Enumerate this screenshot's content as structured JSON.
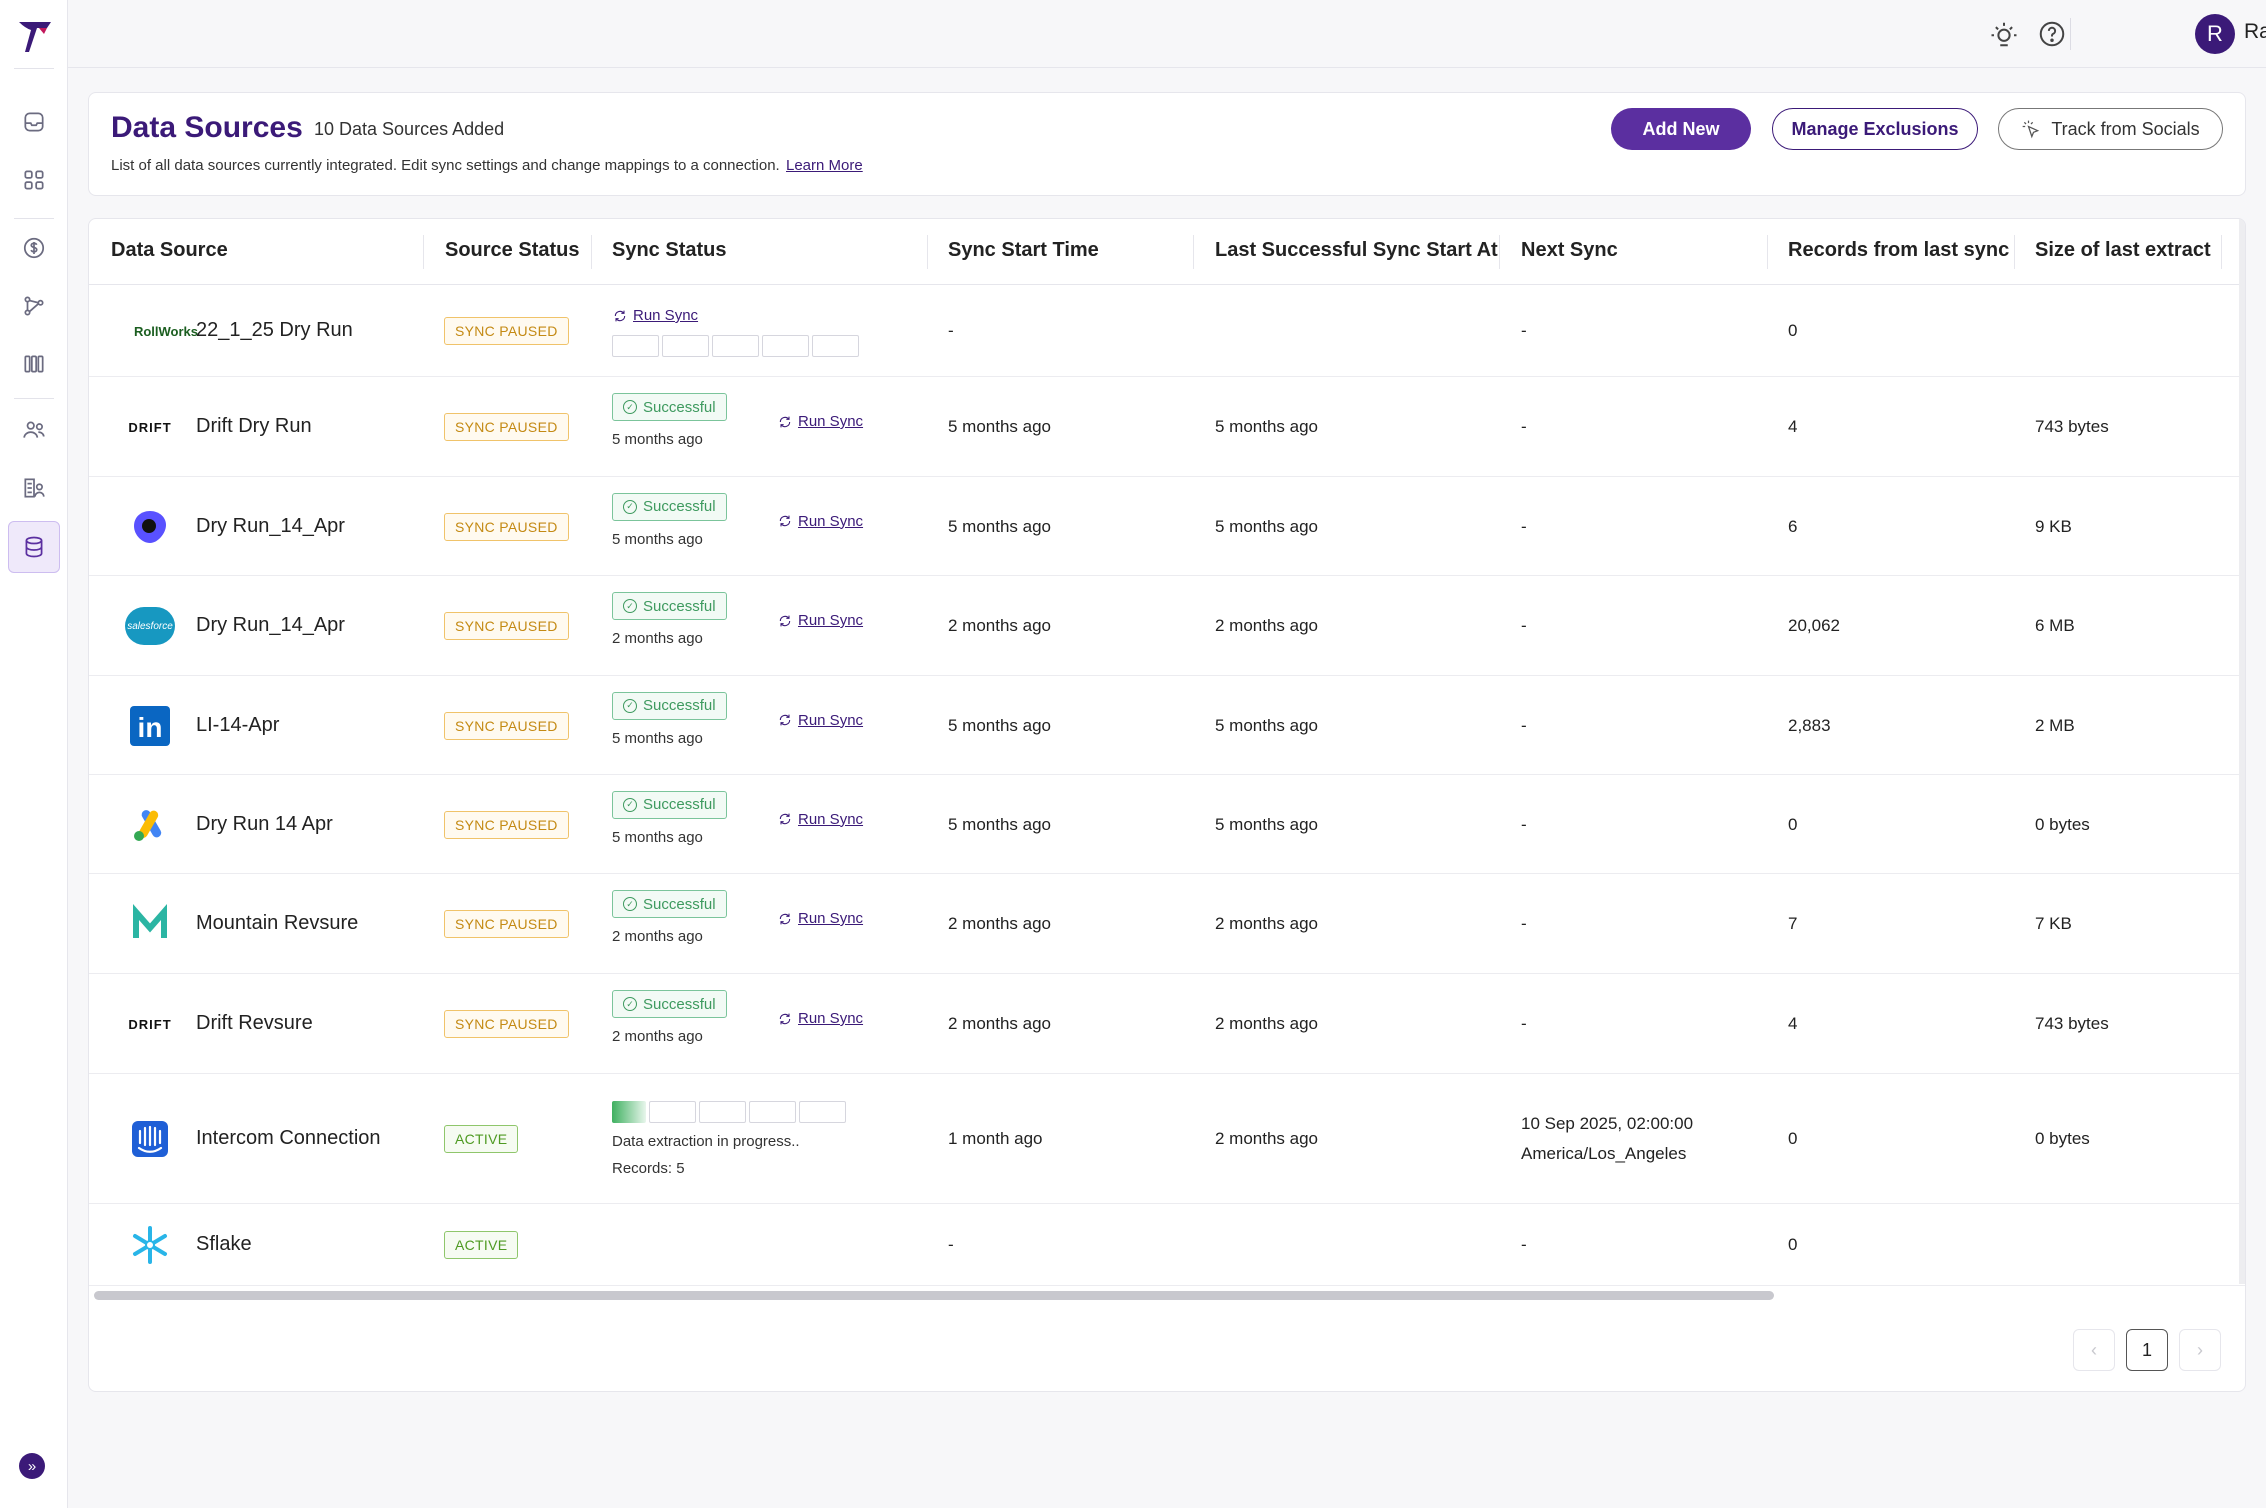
{
  "user": {
    "initial": "R",
    "name": "Ravi"
  },
  "header": {
    "title": "Data Sources",
    "count": "10 Data Sources Added",
    "description": "List of all data sources currently integrated. Edit sync settings and change mappings to a connection.",
    "learn_more": "Learn More",
    "add_new": "Add New",
    "manage_exclusions": "Manage Exclusions",
    "track_from_socials": "Track from Socials"
  },
  "table": {
    "columns": [
      "Data Source",
      "Source Status",
      "Sync Status",
      "Sync Start Time",
      "Last Successful Sync Start At",
      "Next Sync",
      "Records from last sync",
      "Size of last extract"
    ],
    "run_sync_label": "Run Sync",
    "rows": [
      {
        "logo": "rollworks-logo",
        "logo_text": "RollWorks",
        "name": "22_1_25 Dry Run",
        "status": "SYNC PAUSED",
        "sync": "",
        "sync_ago": "",
        "start": "-",
        "last": "",
        "next": "-",
        "records": "0",
        "size": ""
      },
      {
        "logo": "drift-logo",
        "logo_text": "DRIFT",
        "name": "Drift Dry Run",
        "status": "SYNC PAUSED",
        "sync": "Successful",
        "sync_ago": "5 months ago",
        "start": "5 months ago",
        "last": "5 months ago",
        "next": "-",
        "records": "4",
        "size": "743 bytes"
      },
      {
        "logo": "outreach-logo",
        "logo_text": "",
        "name": "Dry Run_14_Apr",
        "status": "SYNC PAUSED",
        "sync": "Successful",
        "sync_ago": "5 months ago",
        "start": "5 months ago",
        "last": "5 months ago",
        "next": "-",
        "records": "6",
        "size": "9 KB"
      },
      {
        "logo": "salesforce-logo",
        "logo_text": "salesforce",
        "name": "Dry Run_14_Apr",
        "status": "SYNC PAUSED",
        "sync": "Successful",
        "sync_ago": "2 months ago",
        "start": "2 months ago",
        "last": "2 months ago",
        "next": "-",
        "records": "20,062",
        "size": "6 MB"
      },
      {
        "logo": "linkedin-logo",
        "logo_text": "in",
        "name": "LI-14-Apr",
        "status": "SYNC PAUSED",
        "sync": "Successful",
        "sync_ago": "5 months ago",
        "start": "5 months ago",
        "last": "5 months ago",
        "next": "-",
        "records": "2,883",
        "size": "2 MB"
      },
      {
        "logo": "google-ads-logo",
        "logo_text": "",
        "name": "Dry Run 14 Apr",
        "status": "SYNC PAUSED",
        "sync": "Successful",
        "sync_ago": "5 months ago",
        "start": "5 months ago",
        "last": "5 months ago",
        "next": "-",
        "records": "0",
        "size": "0 bytes"
      },
      {
        "logo": "revsure-logo",
        "logo_text": "",
        "name": "Mountain Revsure",
        "status": "SYNC PAUSED",
        "sync": "Successful",
        "sync_ago": "2 months ago",
        "start": "2 months ago",
        "last": "2 months ago",
        "next": "-",
        "records": "7",
        "size": "7 KB"
      },
      {
        "logo": "drift-logo",
        "logo_text": "DRIFT",
        "name": "Drift Revsure",
        "status": "SYNC PAUSED",
        "sync": "Successful",
        "sync_ago": "2 months ago",
        "start": "2 months ago",
        "last": "2 months ago",
        "next": "-",
        "records": "4",
        "size": "743 bytes"
      },
      {
        "logo": "intercom-logo",
        "logo_text": "",
        "name": "Intercom Connection",
        "status": "ACTIVE",
        "sync": "Data extraction in progress..",
        "sync_ago": "Records: 5",
        "start": "1 month ago",
        "last": "2 months ago",
        "next": "10 Sep 2025, 02:00:00",
        "next2": "America/Los_Angeles",
        "records": "0",
        "size": "0 bytes"
      },
      {
        "logo": "snowflake-logo",
        "logo_text": "",
        "name": "Sflake",
        "status": "ACTIVE",
        "sync": "",
        "sync_ago": "",
        "start": "-",
        "last": "",
        "next": "-",
        "records": "0",
        "size": ""
      }
    ]
  },
  "pagination": {
    "current": "1",
    "prev": "‹",
    "next": "›"
  },
  "colors": {
    "brand": "#3b1a78",
    "primary": "#5b2fa0",
    "paused": "#c48a14",
    "active": "#4e9a22",
    "success": "#3e9a5f"
  }
}
